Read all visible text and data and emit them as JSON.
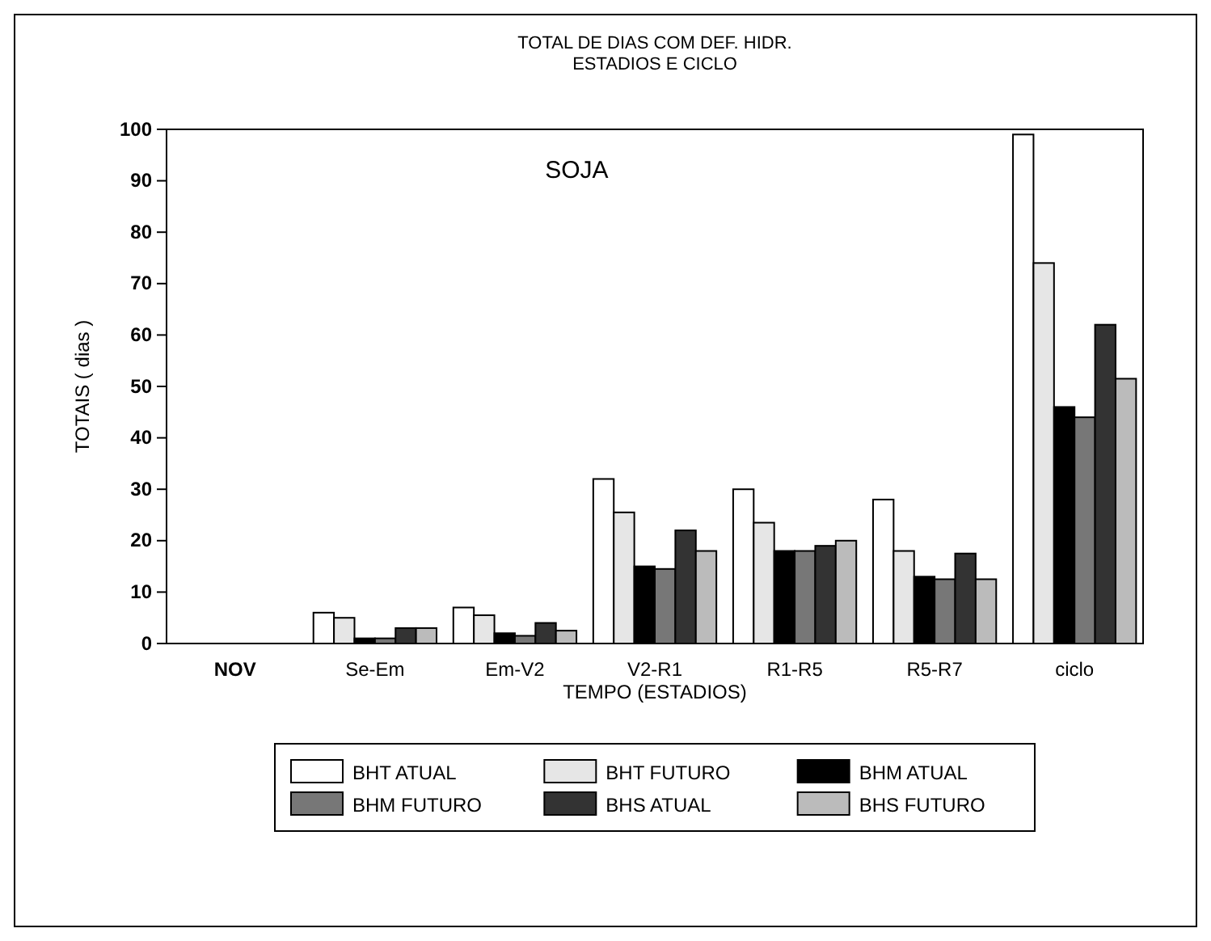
{
  "chart_data": {
    "type": "bar",
    "title": "TOTAL DE DIAS COM DEF. HIDR.",
    "subtitle": "ESTADIOS E CICLO",
    "xlabel": "TEMPO (ESTADIOS)",
    "ylabel": "TOTAIS ( dias )",
    "annotations": [
      "SOJA"
    ],
    "categories": [
      "NOV",
      "Se-Em",
      "Em-V2",
      "V2-R1",
      "R1-R5",
      "R5-R7",
      "ciclo"
    ],
    "series": [
      {
        "name": "BHT ATUAL",
        "color": "#ffffff",
        "values": [
          0,
          6,
          7,
          32,
          30,
          28,
          99
        ]
      },
      {
        "name": "BHT FUTURO",
        "color": "#e6e6e6",
        "values": [
          0,
          5,
          5.5,
          25.5,
          23.5,
          18,
          74
        ]
      },
      {
        "name": "BHM ATUAL",
        "color": "#000000",
        "values": [
          0,
          1,
          2,
          15,
          18,
          13,
          46
        ]
      },
      {
        "name": "BHM FUTURO",
        "color": "#777777",
        "values": [
          0,
          1,
          1.5,
          14.5,
          18,
          12.5,
          44
        ]
      },
      {
        "name": "BHS ATUAL",
        "color": "#333333",
        "values": [
          0,
          3,
          4,
          22,
          19,
          17.5,
          62
        ]
      },
      {
        "name": "BHS FUTURO",
        "color": "#bbbbbb",
        "values": [
          0,
          3,
          2.5,
          18,
          20,
          12.5,
          51.5
        ]
      }
    ],
    "ylim": [
      0,
      100
    ],
    "yticks": [
      0,
      10,
      20,
      30,
      40,
      50,
      60,
      70,
      80,
      90,
      100
    ],
    "grid": false,
    "legend": "bottom"
  }
}
